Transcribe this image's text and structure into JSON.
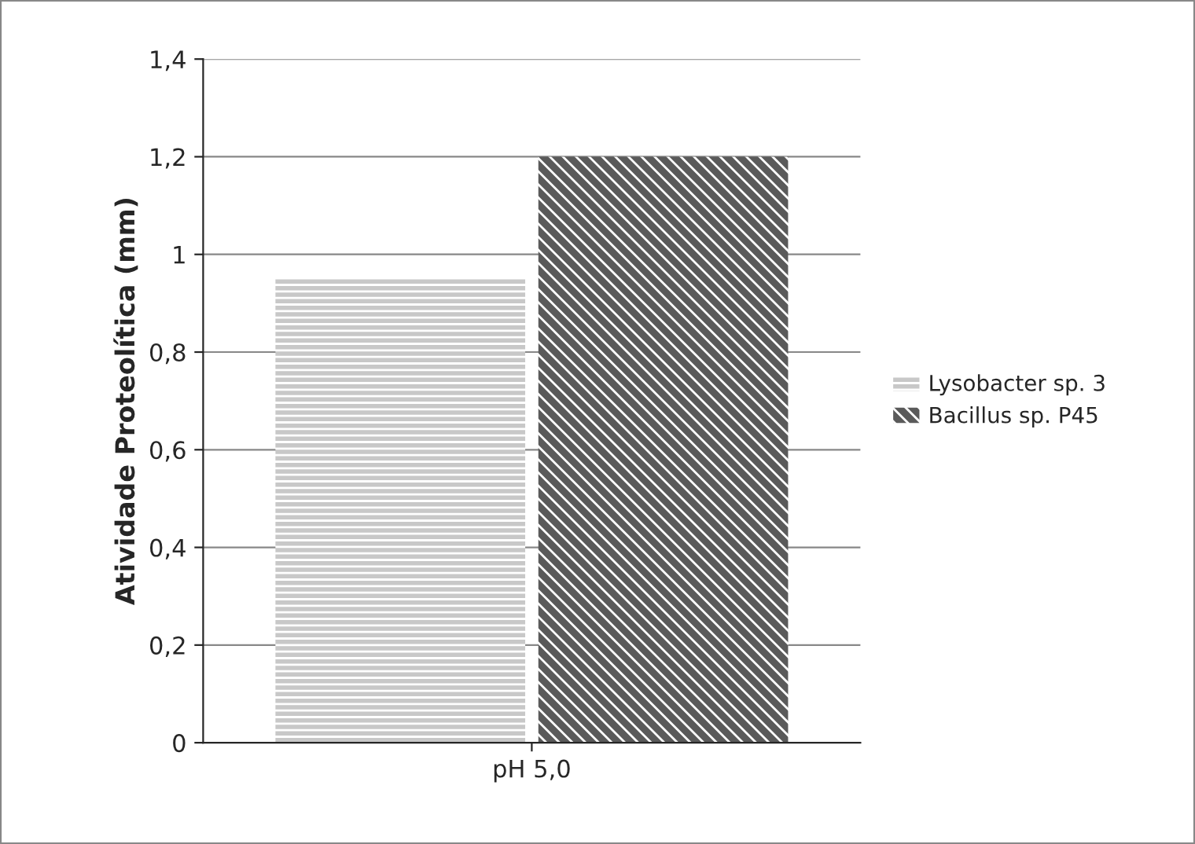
{
  "chart_data": {
    "type": "bar",
    "ylabel": "Atividade Proteolítica (mm)",
    "categories": [
      "pH 5,0"
    ],
    "series": [
      {
        "name": "Lysobacter sp. 3",
        "color": "#c8c8c8",
        "values": [
          0.95
        ]
      },
      {
        "name": "Bacillus sp. P45",
        "color": "#5a5a5a",
        "values": [
          1.2
        ]
      }
    ],
    "ylim": [
      0,
      1.4
    ],
    "yticks": [
      0,
      {
        "value": 0.2,
        "label": "0,2"
      },
      {
        "value": 0.4,
        "label": "0,4"
      },
      {
        "value": 0.6,
        "label": "0,6"
      },
      {
        "value": 0.8,
        "label": "0,8"
      },
      1,
      {
        "value": 1.2,
        "label": "1,2"
      },
      {
        "value": 1.4,
        "label": "1,4"
      }
    ],
    "grid": "y",
    "legend": "right"
  }
}
